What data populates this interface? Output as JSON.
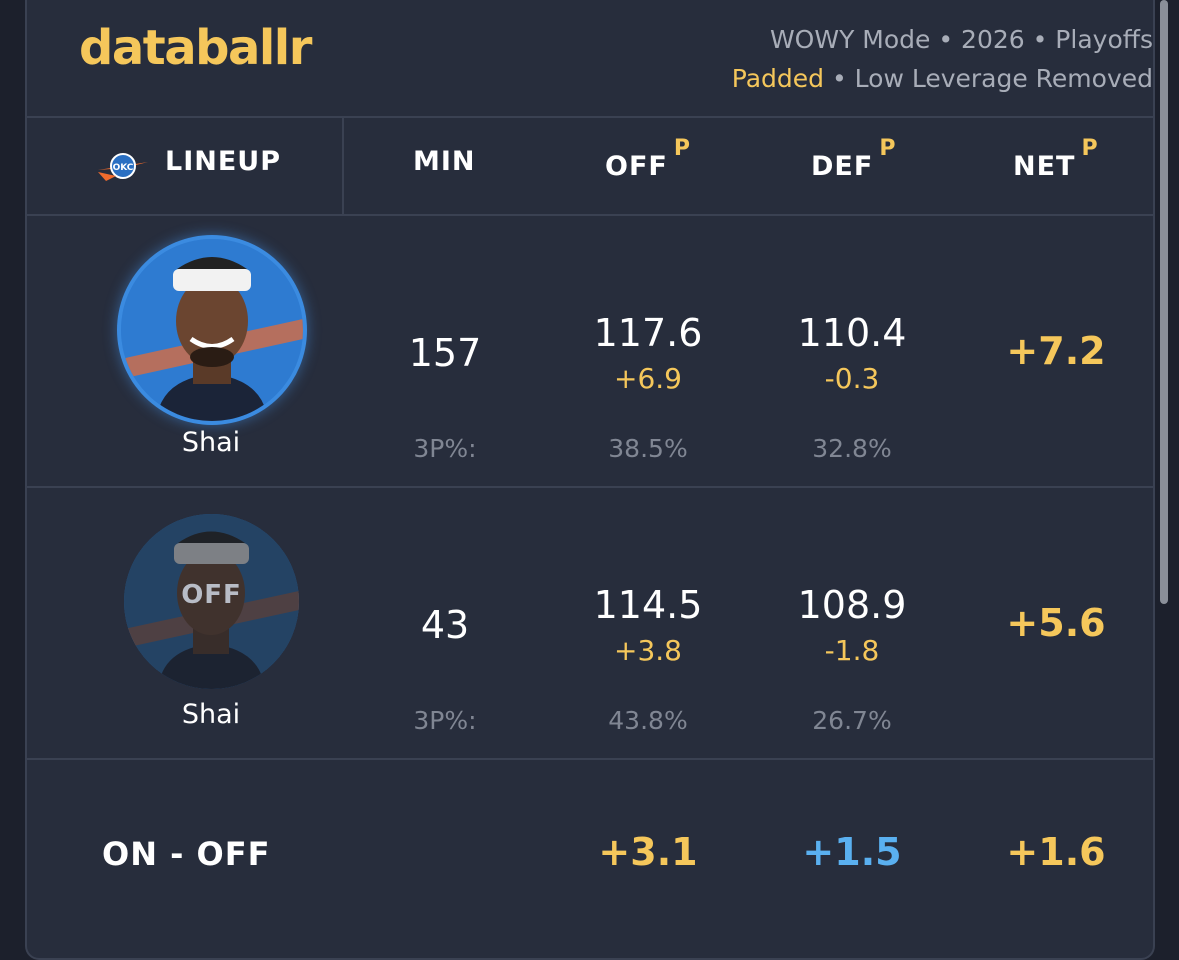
{
  "brand": "databallr",
  "meta": {
    "line1": "WOWY Mode • 2026 • Playoffs",
    "padded": "Padded",
    "line2_rest": " • Low Leverage Removed"
  },
  "headers": {
    "lineup": "LINEUP",
    "min": "MIN",
    "off": "OFF",
    "def": "DEF",
    "net": "NET",
    "padded_marker": "P"
  },
  "rows": [
    {
      "player": "Shai",
      "state": "on",
      "min": "157",
      "off": "117.6",
      "off_delta": "+6.9",
      "def": "110.4",
      "def_delta": "-0.3",
      "net": "+7.2",
      "three_label": "3P%:",
      "off_3p": "38.5%",
      "def_3p": "32.8%"
    },
    {
      "player": "Shai",
      "state": "off",
      "off_badge": "OFF",
      "min": "43",
      "off": "114.5",
      "off_delta": "+3.8",
      "def": "108.9",
      "def_delta": "-1.8",
      "net": "+5.6",
      "three_label": "3P%:",
      "off_3p": "43.8%",
      "def_3p": "26.7%"
    }
  ],
  "on_off": {
    "label": "ON - OFF",
    "off": "+3.1",
    "def": "+1.5",
    "net": "+1.6"
  },
  "colors": {
    "accent_gold": "#f5c75b",
    "accent_blue": "#5ab0f0",
    "background": "#1c202c",
    "card": "#272d3c"
  },
  "icons": [
    "okc-thunder-logo-icon",
    "player-headshot-icon"
  ]
}
